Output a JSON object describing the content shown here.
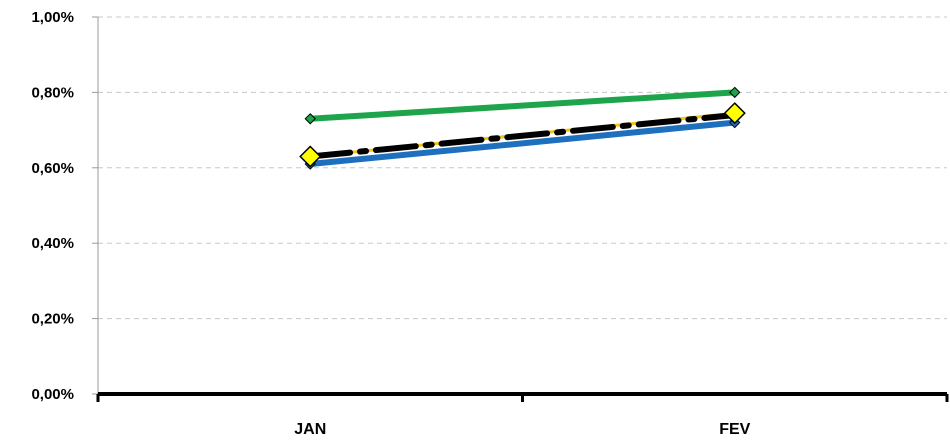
{
  "chart_data": {
    "type": "line",
    "categories": [
      "JAN",
      "FEV"
    ],
    "ylim": [
      0,
      1.0
    ],
    "yticks": [
      0,
      0.2,
      0.4,
      0.6,
      0.8,
      1.0
    ],
    "ytick_labels": [
      "0,00%",
      "0,20%",
      "0,40%",
      "0,60%",
      "0,80%",
      "1,00%"
    ],
    "grid": true,
    "legend": "none",
    "series": [
      {
        "values": [
          0.73,
          0.8
        ],
        "color": "#1ea44a",
        "style": "solid",
        "marker": "diamond-small"
      },
      {
        "values": [
          0.61,
          0.72
        ],
        "color": "#1f6fbf",
        "style": "solid",
        "marker": "diamond-small"
      },
      {
        "values": [
          0.63,
          0.745
        ],
        "color": "#f0c419",
        "style": "solid",
        "marker": "diamond-large"
      },
      {
        "values": [
          0.63,
          0.74
        ],
        "color": "#000000",
        "style": "dash-dot",
        "marker": "none"
      }
    ]
  }
}
